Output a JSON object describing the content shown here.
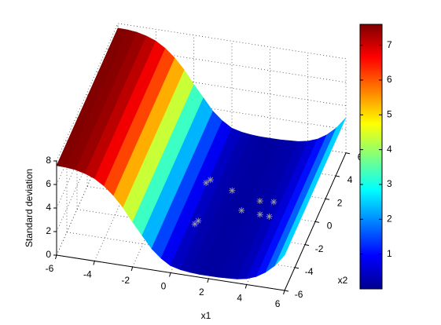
{
  "chart_data": {
    "type": "surface",
    "xlabel": "x1",
    "ylabel": "x2",
    "zlabel": "Standard deviation",
    "xlim": [
      -6,
      6
    ],
    "ylim": [
      -6,
      6
    ],
    "zlim": [
      0,
      8
    ],
    "xticks": [
      -6,
      -4,
      -2,
      0,
      2,
      4,
      6
    ],
    "yticks": [
      -6,
      -4,
      -2,
      0,
      2,
      4,
      6
    ],
    "zticks": [
      0,
      2,
      4,
      6,
      8
    ],
    "surface": {
      "x1": [
        -6,
        -5.5,
        -5,
        -4.5,
        -4,
        -3.5,
        -3,
        -2.5,
        -2,
        -1.5,
        -1,
        -0.5,
        0,
        0.5,
        1,
        1.5,
        2,
        2.5,
        3,
        3.5,
        4,
        4.5,
        5,
        5.5,
        6
      ],
      "values": [
        7.6,
        7.58,
        7.5,
        7.3,
        7.0,
        6.5,
        5.8,
        4.9,
        3.8,
        2.8,
        1.8,
        1.1,
        0.6,
        0.4,
        0.3,
        0.25,
        0.25,
        0.25,
        0.3,
        0.35,
        0.5,
        0.8,
        1.3,
        2.0,
        3.0
      ]
    },
    "points": {
      "x1": [
        -0.15,
        0.0,
        0.2,
        0.3,
        1.3,
        2.2,
        2.9,
        3.6,
        3.2,
        3.7
      ],
      "x2": [
        1.5,
        1.8,
        -2.0,
        -1.7,
        1.2,
        -0.3,
        0.7,
        0.8,
        -0.4,
        -0.45
      ],
      "z": [
        0.3,
        0.3,
        0.3,
        0.3,
        0.3,
        0.3,
        0.3,
        0.3,
        0.3,
        0.3
      ],
      "color": "#9a9a9a"
    },
    "colormap": "jet",
    "clim": [
      0,
      7.6
    ],
    "cticks": [
      1,
      2,
      3,
      4,
      5,
      6,
      7
    ],
    "grid": true
  }
}
